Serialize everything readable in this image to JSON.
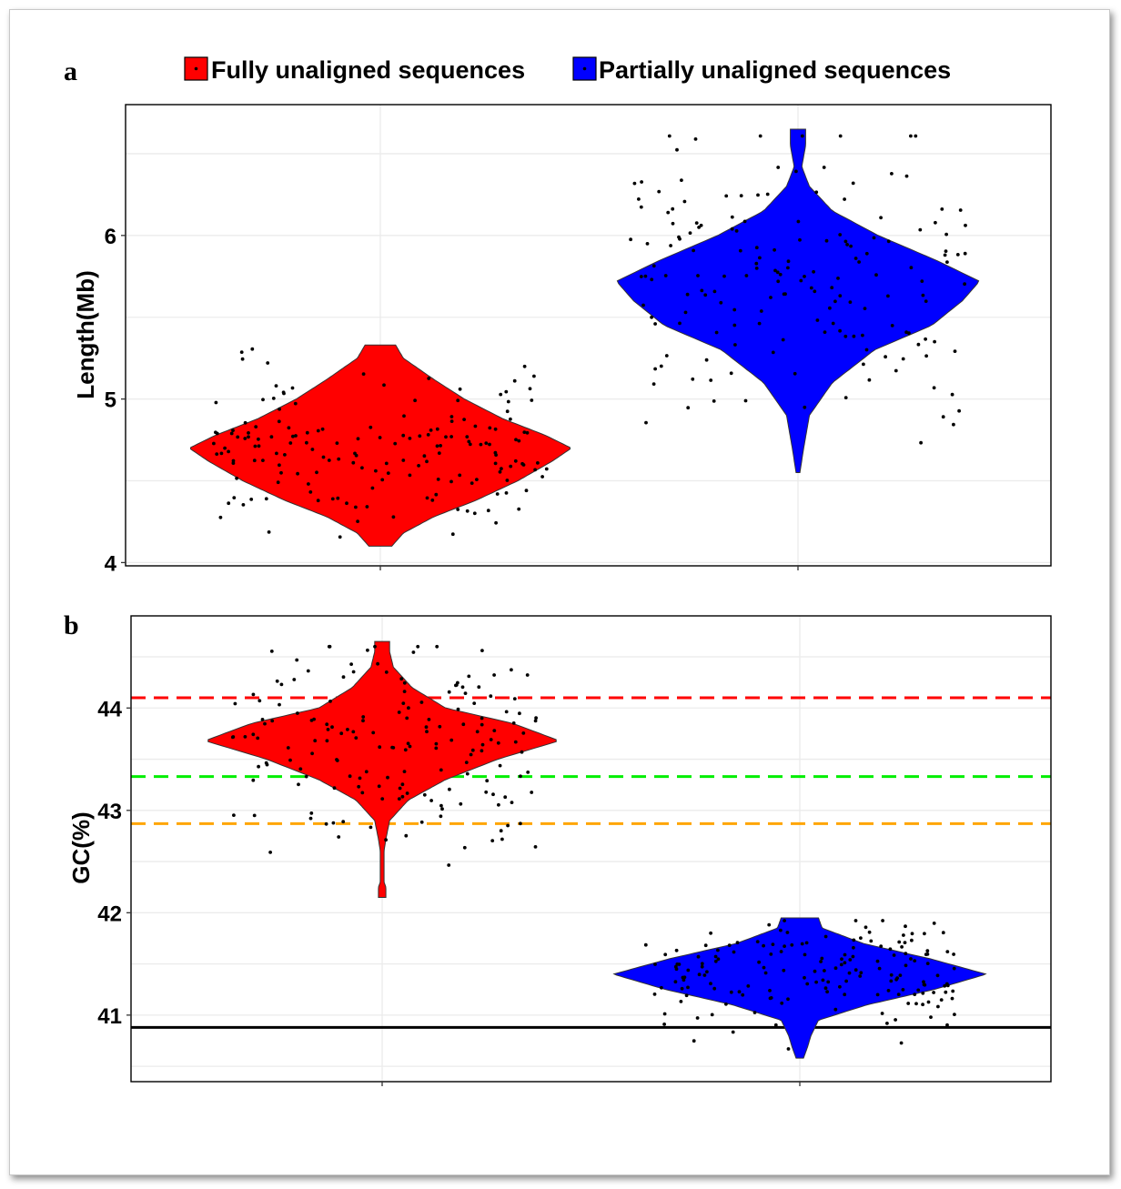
{
  "legend": {
    "items": [
      {
        "label": "Fully unaligned sequences",
        "color": "#ff0000"
      },
      {
        "label": "Partially unaligned sequences",
        "color": "#0000ff"
      }
    ]
  },
  "chart_data": [
    {
      "panel": "a",
      "type": "violin",
      "ylabel": "Length(Mb)",
      "xlabel": "",
      "ylim": [
        3.98,
        6.8
      ],
      "yticks": [
        4,
        5,
        6
      ],
      "grid": true,
      "series": [
        {
          "name": "Fully unaligned sequences",
          "color": "#ff0000",
          "min": 4.1,
          "max": 5.33,
          "profile": [
            [
              4.1,
              0.06
            ],
            [
              4.18,
              0.12
            ],
            [
              4.28,
              0.28
            ],
            [
              4.38,
              0.5
            ],
            [
              4.5,
              0.72
            ],
            [
              4.62,
              0.9
            ],
            [
              4.7,
              1.0
            ],
            [
              4.78,
              0.86
            ],
            [
              4.88,
              0.64
            ],
            [
              5.0,
              0.44
            ],
            [
              5.12,
              0.28
            ],
            [
              5.25,
              0.12
            ],
            [
              5.33,
              0.08
            ]
          ]
        },
        {
          "name": "Partially unaligned sequences",
          "color": "#0000ff",
          "min": 4.55,
          "max": 6.65,
          "profile": [
            [
              4.55,
              0.01
            ],
            [
              4.7,
              0.03
            ],
            [
              4.9,
              0.06
            ],
            [
              5.1,
              0.18
            ],
            [
              5.3,
              0.4
            ],
            [
              5.45,
              0.7
            ],
            [
              5.6,
              0.86
            ],
            [
              5.72,
              0.95
            ],
            [
              5.85,
              0.72
            ],
            [
              6.0,
              0.42
            ],
            [
              6.15,
              0.18
            ],
            [
              6.3,
              0.06
            ],
            [
              6.42,
              0.02
            ],
            [
              6.55,
              0.04
            ],
            [
              6.65,
              0.04
            ]
          ]
        }
      ]
    },
    {
      "panel": "b",
      "type": "violin",
      "ylabel": "GC(%)",
      "xlabel": "",
      "ylim": [
        40.35,
        44.9
      ],
      "yticks": [
        41,
        42,
        43,
        44
      ],
      "grid": true,
      "reference_lines": [
        {
          "value": 44.1,
          "color": "#ff0000",
          "style": "dashed"
        },
        {
          "value": 43.33,
          "color": "#00ee00",
          "style": "dashed"
        },
        {
          "value": 42.87,
          "color": "#ffa500",
          "style": "dashed"
        },
        {
          "value": 40.88,
          "color": "#000000",
          "style": "solid"
        }
      ],
      "series": [
        {
          "name": "Fully unaligned sequences",
          "color": "#ff0000",
          "min": 42.15,
          "max": 44.65,
          "profile": [
            [
              42.15,
              0.02
            ],
            [
              42.25,
              0.02
            ],
            [
              42.3,
              0.01
            ],
            [
              42.6,
              0.01
            ],
            [
              42.72,
              0.02
            ],
            [
              42.9,
              0.04
            ],
            [
              43.1,
              0.14
            ],
            [
              43.3,
              0.34
            ],
            [
              43.5,
              0.62
            ],
            [
              43.68,
              0.95
            ],
            [
              43.85,
              0.7
            ],
            [
              44.0,
              0.34
            ],
            [
              44.2,
              0.16
            ],
            [
              44.4,
              0.06
            ],
            [
              44.55,
              0.04
            ],
            [
              44.65,
              0.04
            ]
          ]
        },
        {
          "name": "Partially unaligned sequences",
          "color": "#0000ff",
          "min": 40.58,
          "max": 41.95,
          "profile": [
            [
              40.58,
              0.02
            ],
            [
              40.68,
              0.04
            ],
            [
              40.8,
              0.06
            ],
            [
              40.95,
              0.1
            ],
            [
              41.1,
              0.36
            ],
            [
              41.25,
              0.72
            ],
            [
              41.4,
              1.0
            ],
            [
              41.55,
              0.7
            ],
            [
              41.7,
              0.34
            ],
            [
              41.85,
              0.12
            ],
            [
              41.95,
              0.1
            ]
          ]
        }
      ]
    }
  ]
}
